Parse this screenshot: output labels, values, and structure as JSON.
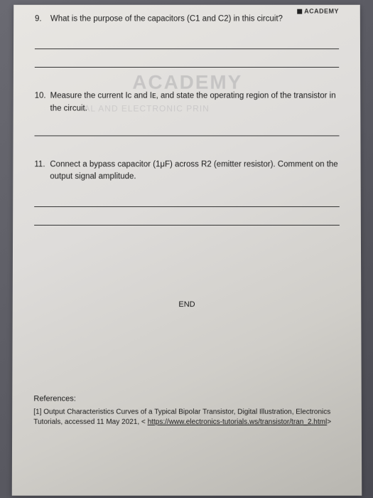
{
  "header": {
    "brand": "ACADEMY"
  },
  "watermarks": {
    "main": "ACADEMY",
    "sub": "AL AND ELECTRONIC PRIN"
  },
  "questions": {
    "q9": {
      "num": "9.",
      "text": "What is the purpose of the capacitors (C1 and C2) in this circuit?"
    },
    "q10": {
      "num": "10.",
      "text": "Measure the current Iᴄ and Iᴇ, and state the operating region of the transistor in the circuit."
    },
    "q11": {
      "num": "11.",
      "text": "Connect a bypass capacitor (1μF) across R2 (emitter resistor). Comment on the output signal amplitude."
    }
  },
  "end": "END",
  "references": {
    "heading": "References:",
    "item1_prefix": "[1] Output Characteristics Curves of a Typical Bipolar Transistor, Digital Illustration, Electronics Tutorials, accessed 11 May 2021, < ",
    "item1_link": "https://www.electronics-tutorials.ws/transistor/tran_2.html",
    "item1_suffix": ">"
  }
}
